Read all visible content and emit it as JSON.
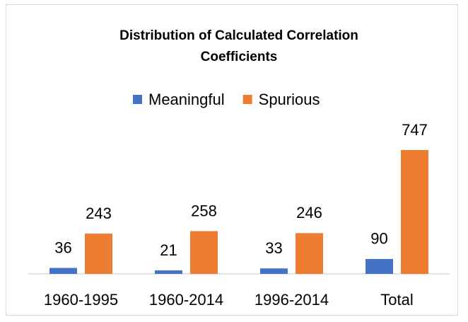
{
  "chart_data": {
    "type": "bar",
    "title": "Distribution of Calculated Correlation Coefficients",
    "categories": [
      "1960-1995",
      "1960-2014",
      "1996-2014",
      "Total"
    ],
    "series": [
      {
        "name": "Meaningful",
        "color": "#4472c4",
        "values": [
          36,
          21,
          33,
          90
        ]
      },
      {
        "name": "Spurious",
        "color": "#ed7d31",
        "values": [
          243,
          258,
          246,
          747
        ]
      }
    ],
    "legend": "top",
    "data_labels": true
  }
}
